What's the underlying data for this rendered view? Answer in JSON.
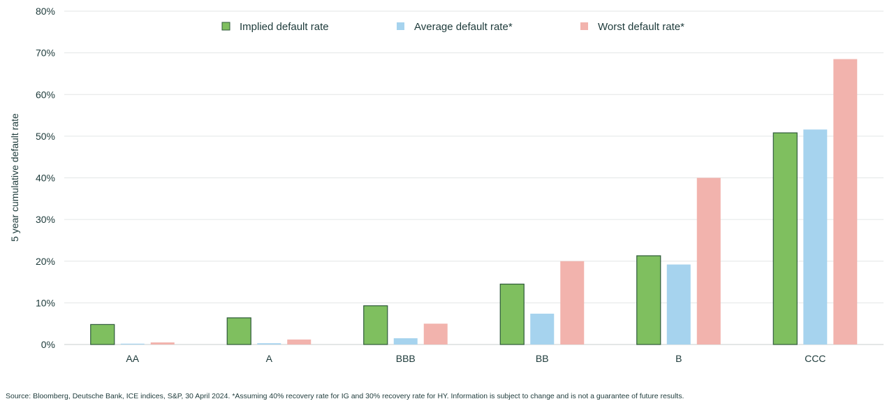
{
  "chart_data": {
    "type": "bar",
    "title": "",
    "xlabel": "",
    "ylabel": "5 year cumulative default rate",
    "ylim": [
      0,
      80
    ],
    "yticks": [
      "0%",
      "10%",
      "20%",
      "30%",
      "40%",
      "50%",
      "60%",
      "70%",
      "80%"
    ],
    "categories": [
      "AA",
      "A",
      "BBB",
      "BB",
      "B",
      "CCC"
    ],
    "legend_position": "top",
    "grid": true,
    "series": [
      {
        "name": "Implied default rate",
        "color": "#7fbf5f",
        "border": "#2e5a3a",
        "values": [
          4.8,
          6.4,
          9.3,
          14.5,
          21.3,
          50.8
        ]
      },
      {
        "name": "Average default rate*",
        "color": "#a6d3ee",
        "border": null,
        "values": [
          0.2,
          0.3,
          1.5,
          7.4,
          19.2,
          51.6
        ]
      },
      {
        "name": "Worst default rate*",
        "color": "#f2b3ad",
        "border": null,
        "values": [
          0.5,
          1.2,
          5.0,
          20.0,
          40.0,
          68.5
        ]
      }
    ]
  },
  "footnote": "Source: Bloomberg, Deutsche Bank, ICE indices, S&P, 30 April 2024. *Assuming 40% recovery rate for IG and 30% recovery rate for HY. Information is subject to change and is not a guarantee of future results."
}
